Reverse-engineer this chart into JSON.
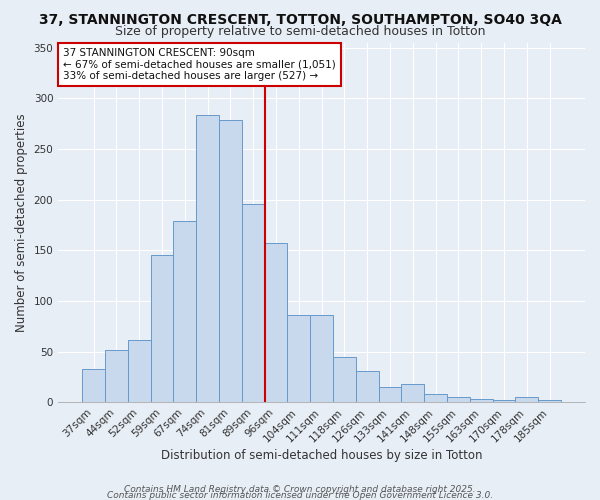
{
  "title": "37, STANNINGTON CRESCENT, TOTTON, SOUTHAMPTON, SO40 3QA",
  "subtitle": "Size of property relative to semi-detached houses in Totton",
  "xlabel": "Distribution of semi-detached houses by size in Totton",
  "ylabel": "Number of semi-detached properties",
  "annotation_line1": "37 STANNINGTON CRESCENT: 90sqm",
  "annotation_line2": "← 67% of semi-detached houses are smaller (1,051)",
  "annotation_line3": "33% of semi-detached houses are larger (527) →",
  "footer_line1": "Contains HM Land Registry data © Crown copyright and database right 2025.",
  "footer_line2": "Contains public sector information licensed under the Open Government Licence 3.0.",
  "bar_labels": [
    "37sqm",
    "44sqm",
    "52sqm",
    "59sqm",
    "67sqm",
    "74sqm",
    "81sqm",
    "89sqm",
    "96sqm",
    "104sqm",
    "111sqm",
    "118sqm",
    "126sqm",
    "133sqm",
    "141sqm",
    "148sqm",
    "155sqm",
    "163sqm",
    "170sqm",
    "178sqm",
    "185sqm"
  ],
  "bar_values": [
    33,
    52,
    61,
    145,
    179,
    283,
    279,
    196,
    157,
    86,
    86,
    45,
    31,
    15,
    18,
    8,
    5,
    3,
    2,
    5,
    2
  ],
  "bar_color": "#c8d9ee",
  "bar_edge_color": "#6699cc",
  "vline_x": 7.5,
  "vline_color": "#cc0000",
  "ylim": [
    0,
    355
  ],
  "yticks": [
    0,
    50,
    100,
    150,
    200,
    250,
    300,
    350
  ],
  "bg_color": "#e8eef6",
  "plot_bg_color": "#e8eef6",
  "grid_color": "#ffffff",
  "title_fontsize": 10,
  "subtitle_fontsize": 9,
  "tick_fontsize": 7.5,
  "xlabel_fontsize": 8.5,
  "ylabel_fontsize": 8.5,
  "annotation_box_color": "#cc0000",
  "footer_fontsize": 6.5
}
